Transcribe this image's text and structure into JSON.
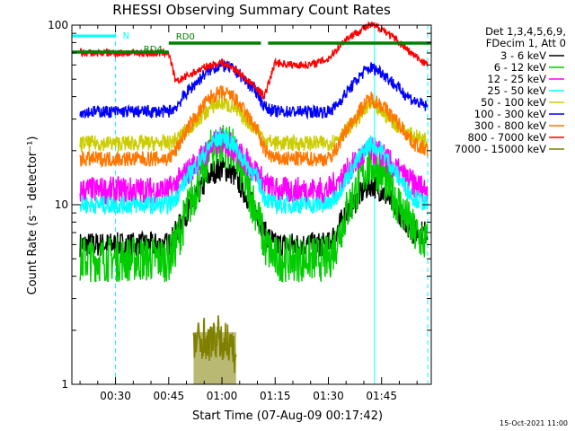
{
  "chart_data": {
    "type": "line",
    "title": "RHESSI Observing Summary Count Rates",
    "xlabel": "Start Time (07-Aug-09 00:17:42)",
    "ylabel": "Count Rate (s⁻¹ detector⁻¹)",
    "x_unit": "minutes after 00:00 UT",
    "xlim": [
      17.7,
      119.0
    ],
    "ylim": [
      1,
      100
    ],
    "yscale": "log",
    "x_ticks": [
      {
        "value": 30,
        "label": "00:30"
      },
      {
        "value": 45,
        "label": "00:45"
      },
      {
        "value": 60,
        "label": "01:00"
      },
      {
        "value": 75,
        "label": "01:15"
      },
      {
        "value": 90,
        "label": "01:30"
      },
      {
        "value": 105,
        "label": "01:45"
      }
    ],
    "y_ticks": [
      {
        "value": 1,
        "label": "1"
      },
      {
        "value": 10,
        "label": "10"
      },
      {
        "value": 100,
        "label": "100"
      }
    ],
    "grid": false,
    "legend_position": "right",
    "legend_header": [
      "Det 1,3,4,5,6,9,",
      "FDecim 1, Att 0"
    ],
    "series": [
      {
        "name": "3 - 6 keV",
        "color": "#000000",
        "x": [
          20,
          25,
          30,
          35,
          40,
          45,
          47,
          50,
          55,
          57,
          60,
          63,
          65,
          70,
          72,
          75,
          80,
          85,
          90,
          92,
          95,
          100,
          102,
          105,
          110,
          114,
          118
        ],
        "y": [
          6,
          6,
          6,
          6,
          6,
          6,
          7,
          9,
          13,
          15,
          16,
          15,
          13,
          9,
          7,
          6,
          6,
          6,
          6,
          7,
          9,
          12,
          13,
          12,
          9,
          7,
          7
        ]
      },
      {
        "name": "6 - 12 keV",
        "color": "#00cc00",
        "x": [
          20,
          25,
          30,
          35,
          40,
          45,
          47,
          50,
          55,
          57,
          60,
          63,
          65,
          70,
          72,
          75,
          80,
          85,
          90,
          92,
          95,
          100,
          102,
          105,
          110,
          114,
          118
        ],
        "y": [
          5,
          5,
          5,
          5,
          5,
          5,
          6,
          9,
          16,
          20,
          22,
          20,
          16,
          9,
          6,
          5,
          5,
          5,
          5,
          6,
          9,
          15,
          17,
          15,
          10,
          7,
          6
        ]
      },
      {
        "name": "12 - 25 keV",
        "color": "#ff00ff",
        "x": [
          20,
          25,
          30,
          35,
          40,
          45,
          47,
          50,
          55,
          57,
          60,
          63,
          65,
          70,
          72,
          75,
          80,
          85,
          90,
          92,
          95,
          100,
          102,
          105,
          110,
          114,
          118
        ],
        "y": [
          12,
          12,
          12,
          12,
          12,
          12,
          13,
          15,
          19,
          21,
          23,
          21,
          19,
          15,
          13,
          12,
          12,
          12,
          12,
          13,
          15,
          19,
          20,
          19,
          15,
          13,
          12
        ]
      },
      {
        "name": "25 - 50 keV",
        "color": "#00ffff",
        "x": [
          20,
          25,
          30,
          35,
          40,
          45,
          47,
          50,
          55,
          57,
          60,
          63,
          65,
          70,
          72,
          75,
          80,
          85,
          90,
          92,
          95,
          100,
          102,
          105,
          110,
          114,
          118
        ],
        "y": [
          10,
          10,
          10,
          10,
          10,
          10,
          11,
          14,
          19,
          22,
          24,
          22,
          19,
          14,
          11,
          10,
          10,
          10,
          10,
          11,
          14,
          20,
          22,
          20,
          14,
          11,
          10
        ]
      },
      {
        "name": "50 - 100 keV",
        "color": "#cccc00",
        "x": [
          20,
          25,
          30,
          35,
          40,
          45,
          47,
          50,
          55,
          57,
          60,
          63,
          65,
          70,
          72,
          75,
          80,
          85,
          90,
          92,
          95,
          100,
          102,
          105,
          110,
          114,
          118
        ],
        "y": [
          22,
          22,
          22,
          22,
          22,
          22,
          23,
          26,
          32,
          35,
          37,
          35,
          32,
          26,
          23,
          22,
          22,
          22,
          22,
          23,
          26,
          33,
          36,
          33,
          27,
          24,
          23
        ]
      },
      {
        "name": "100 - 300 keV",
        "color": "#0000ff",
        "x": [
          20,
          25,
          30,
          35,
          40,
          45,
          47,
          50,
          55,
          57,
          60,
          63,
          65,
          70,
          72,
          75,
          80,
          85,
          90,
          92,
          95,
          100,
          102,
          105,
          110,
          114,
          118
        ],
        "y": [
          33,
          33,
          33,
          33,
          33,
          33,
          35,
          42,
          53,
          57,
          60,
          57,
          53,
          42,
          35,
          33,
          33,
          33,
          33,
          35,
          42,
          55,
          58,
          55,
          44,
          38,
          35
        ]
      },
      {
        "name": "300 - 800 keV",
        "color": "#ff7700",
        "x": [
          20,
          25,
          30,
          35,
          40,
          45,
          47,
          50,
          55,
          57,
          60,
          63,
          65,
          70,
          72,
          75,
          80,
          85,
          90,
          92,
          95,
          100,
          102,
          105,
          110,
          114,
          118
        ],
        "y": [
          18,
          18,
          18,
          18,
          18,
          18,
          20,
          26,
          36,
          40,
          42,
          40,
          36,
          26,
          20,
          18,
          18,
          18,
          18,
          20,
          26,
          36,
          39,
          36,
          28,
          22,
          20
        ]
      },
      {
        "name": "800 - 7000 keV",
        "color": "#ff0000",
        "x": [
          20,
          25,
          30,
          35,
          40,
          45,
          47,
          50,
          55,
          57,
          60,
          63,
          65,
          70,
          72,
          75,
          80,
          85,
          90,
          92,
          95,
          100,
          102,
          105,
          110,
          114,
          118
        ],
        "y": [
          70,
          70,
          70,
          70,
          70,
          70,
          48,
          52,
          58,
          60,
          62,
          58,
          54,
          44,
          40,
          62,
          60,
          60,
          65,
          72,
          84,
          96,
          100,
          96,
          80,
          68,
          60
        ]
      },
      {
        "name": "7000 - 15000 keV",
        "color": "#808000",
        "x": [
          52,
          53,
          54,
          55,
          56,
          57,
          58,
          59,
          60,
          61,
          62,
          63,
          64
        ],
        "y": [
          1.6,
          1.8,
          1.7,
          1.9,
          1.6,
          1.8,
          1.7,
          1.9,
          1.6,
          1.8,
          1.7,
          1.5,
          1.4
        ]
      }
    ],
    "annotations": {
      "markers": [
        {
          "label": "N",
          "color": "#00ffff",
          "x_start": 17.7,
          "x_end": 30
        }
      ],
      "status_bars": [
        {
          "label": "RD4",
          "color": "#008000",
          "x_start": 17.7,
          "x_end": 45
        },
        {
          "label": "RD0",
          "color": "#008000",
          "x_start": 45,
          "x_end": 71
        },
        {
          "label": "",
          "color": "#008000",
          "x_start": 73,
          "x_end": 119
        }
      ],
      "vlines": [
        {
          "x": 17.7,
          "style": "solid",
          "color": "#00ffff"
        },
        {
          "x": 30,
          "style": "dashed",
          "color": "#00ffff"
        },
        {
          "x": 103,
          "style": "solid",
          "color": "#00ffff"
        },
        {
          "x": 118,
          "style": "dashed",
          "color": "#00ffff"
        }
      ]
    }
  },
  "footer": {
    "timestamp": "15-Oct-2021 11:00"
  }
}
